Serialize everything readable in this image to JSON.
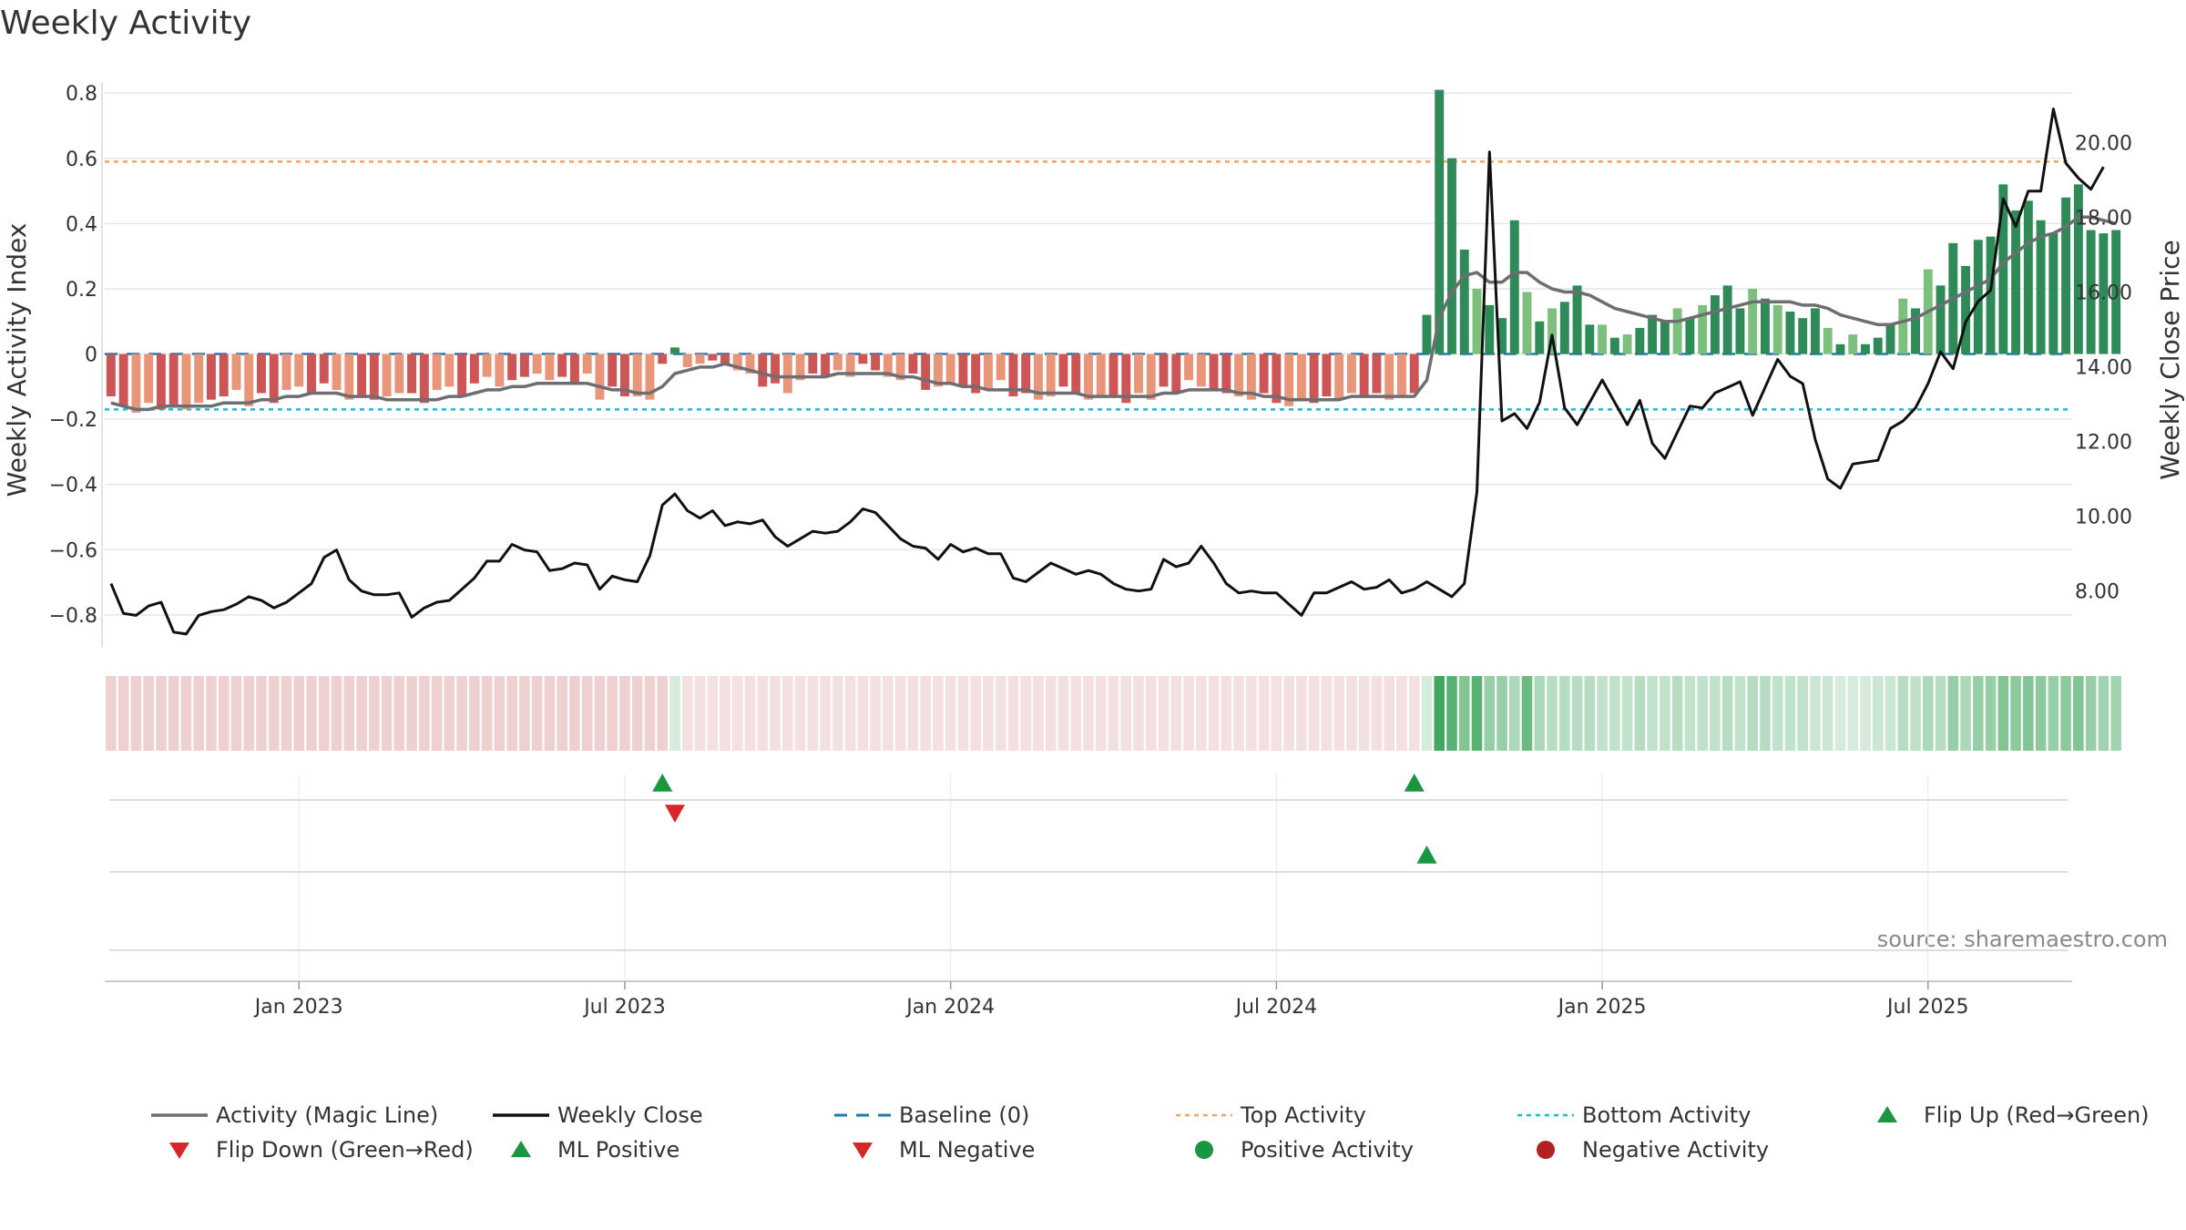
{
  "chart_data": {
    "type": "bar",
    "title": "Weekly Activity",
    "ylabel": "Weekly Activity Index",
    "y2label": "Weekly Close Price",
    "ylim": [
      -0.87,
      0.82
    ],
    "y2lim": [
      6.75,
      21.5
    ],
    "y_ticks": [
      {
        "v": 0.8,
        "label": "0.8"
      },
      {
        "v": 0.6,
        "label": "0.6"
      },
      {
        "v": 0.4,
        "label": "0.4"
      },
      {
        "v": 0.2,
        "label": "0.2"
      },
      {
        "v": 0,
        "label": "0"
      },
      {
        "v": -0.2,
        "label": "−0.2"
      },
      {
        "v": -0.4,
        "label": "−0.4"
      },
      {
        "v": -0.6,
        "label": "−0.6"
      },
      {
        "v": -0.8,
        "label": "−0.8"
      }
    ],
    "y2_ticks": [
      {
        "v": 20,
        "label": "20.00"
      },
      {
        "v": 18,
        "label": "18.00"
      },
      {
        "v": 16,
        "label": "16.00"
      },
      {
        "v": 14,
        "label": "14.00"
      },
      {
        "v": 12,
        "label": "12.00"
      },
      {
        "v": 10,
        "label": "10.00"
      },
      {
        "v": 8,
        "label": "8.00"
      }
    ],
    "x_ticks": [
      {
        "i": 15,
        "label": "Jan 2023"
      },
      {
        "i": 41,
        "label": "Jul 2023"
      },
      {
        "i": 67,
        "label": "Jan 2024"
      },
      {
        "i": 93,
        "label": "Jul 2024"
      },
      {
        "i": 119,
        "label": "Jan 2025"
      },
      {
        "i": 145,
        "label": "Jul 2025"
      }
    ],
    "weeks": 157,
    "top_activity": 0.59,
    "bottom_activity": -0.17,
    "series": [
      {
        "name": "Weekly Activity Index",
        "kind": "bar",
        "values": [
          -0.13,
          -0.16,
          -0.18,
          -0.15,
          -0.17,
          -0.16,
          -0.17,
          -0.15,
          -0.14,
          -0.13,
          -0.11,
          -0.16,
          -0.12,
          -0.15,
          -0.11,
          -0.1,
          -0.12,
          -0.09,
          -0.11,
          -0.14,
          -0.13,
          -0.14,
          -0.13,
          -0.12,
          -0.12,
          -0.15,
          -0.11,
          -0.1,
          -0.13,
          -0.09,
          -0.07,
          -0.1,
          -0.08,
          -0.07,
          -0.06,
          -0.08,
          -0.07,
          -0.09,
          -0.06,
          -0.14,
          -0.1,
          -0.13,
          -0.13,
          -0.14,
          -0.03,
          0.02,
          -0.04,
          -0.03,
          -0.02,
          -0.03,
          -0.05,
          -0.06,
          -0.1,
          -0.09,
          -0.12,
          -0.08,
          -0.06,
          -0.07,
          -0.05,
          -0.07,
          -0.03,
          -0.05,
          -0.07,
          -0.08,
          -0.06,
          -0.11,
          -0.1,
          -0.09,
          -0.1,
          -0.12,
          -0.11,
          -0.08,
          -0.13,
          -0.12,
          -0.14,
          -0.13,
          -0.1,
          -0.12,
          -0.14,
          -0.13,
          -0.13,
          -0.15,
          -0.12,
          -0.14,
          -0.1,
          -0.12,
          -0.08,
          -0.1,
          -0.11,
          -0.12,
          -0.13,
          -0.14,
          -0.12,
          -0.15,
          -0.16,
          -0.14,
          -0.15,
          -0.13,
          -0.14,
          -0.12,
          -0.13,
          -0.12,
          -0.14,
          -0.13,
          -0.12,
          0.12,
          0.81,
          0.6,
          0.32,
          0.2,
          0.15,
          0.11,
          0.41,
          0.19,
          0.1,
          0.14,
          0.16,
          0.21,
          0.09,
          0.09,
          0.05,
          0.06,
          0.08,
          0.12,
          0.1,
          0.14,
          0.11,
          0.15,
          0.18,
          0.21,
          0.14,
          0.2,
          0.17,
          0.15,
          0.13,
          0.11,
          0.14,
          0.08,
          0.03,
          0.06,
          0.03,
          0.05,
          0.09,
          0.17,
          0.14,
          0.26,
          0.21,
          0.34,
          0.27,
          0.35,
          0.36,
          0.52,
          0.44,
          0.47,
          0.41,
          0.37,
          0.48,
          0.52,
          0.38,
          0.37,
          0.38
        ]
      },
      {
        "name": "Activity (Magic Line)",
        "kind": "line",
        "values": [
          -0.15,
          -0.16,
          -0.17,
          -0.17,
          -0.16,
          -0.16,
          -0.16,
          -0.16,
          -0.16,
          -0.15,
          -0.15,
          -0.15,
          -0.14,
          -0.14,
          -0.13,
          -0.13,
          -0.12,
          -0.12,
          -0.12,
          -0.13,
          -0.13,
          -0.13,
          -0.14,
          -0.14,
          -0.14,
          -0.14,
          -0.14,
          -0.13,
          -0.13,
          -0.12,
          -0.11,
          -0.11,
          -0.1,
          -0.1,
          -0.09,
          -0.09,
          -0.09,
          -0.09,
          -0.09,
          -0.1,
          -0.11,
          -0.11,
          -0.12,
          -0.12,
          -0.1,
          -0.06,
          -0.05,
          -0.04,
          -0.04,
          -0.03,
          -0.04,
          -0.05,
          -0.06,
          -0.07,
          -0.07,
          -0.07,
          -0.07,
          -0.07,
          -0.06,
          -0.06,
          -0.06,
          -0.06,
          -0.06,
          -0.07,
          -0.07,
          -0.08,
          -0.09,
          -0.09,
          -0.1,
          -0.1,
          -0.11,
          -0.11,
          -0.11,
          -0.11,
          -0.12,
          -0.12,
          -0.12,
          -0.12,
          -0.13,
          -0.13,
          -0.13,
          -0.13,
          -0.13,
          -0.13,
          -0.12,
          -0.12,
          -0.11,
          -0.11,
          -0.11,
          -0.11,
          -0.12,
          -0.12,
          -0.13,
          -0.13,
          -0.14,
          -0.14,
          -0.14,
          -0.14,
          -0.14,
          -0.13,
          -0.13,
          -0.13,
          -0.13,
          -0.13,
          -0.13,
          -0.08,
          0.11,
          0.19,
          0.24,
          0.25,
          0.22,
          0.22,
          0.25,
          0.25,
          0.22,
          0.2,
          0.19,
          0.19,
          0.18,
          0.16,
          0.14,
          0.13,
          0.12,
          0.11,
          0.1,
          0.1,
          0.11,
          0.12,
          0.13,
          0.14,
          0.15,
          0.16,
          0.16,
          0.16,
          0.16,
          0.15,
          0.15,
          0.14,
          0.12,
          0.11,
          0.1,
          0.09,
          0.09,
          0.1,
          0.11,
          0.13,
          0.15,
          0.17,
          0.19,
          0.21,
          0.23,
          0.28,
          0.31,
          0.34,
          0.36,
          0.37,
          0.39,
          0.42,
          0.42,
          0.41,
          0.4
        ]
      },
      {
        "name": "Weekly Close",
        "kind": "line",
        "axis": "right",
        "values": [
          8.2,
          7.4,
          7.35,
          7.6,
          7.7,
          6.9,
          6.85,
          7.35,
          7.45,
          7.5,
          7.65,
          7.85,
          7.75,
          7.55,
          7.7,
          7.95,
          8.2,
          8.9,
          9.1,
          8.3,
          8.0,
          7.9,
          7.9,
          7.95,
          7.3,
          7.55,
          7.7,
          7.75,
          8.05,
          8.35,
          8.8,
          8.8,
          9.25,
          9.1,
          9.05,
          8.55,
          8.6,
          8.75,
          8.7,
          8.05,
          8.4,
          8.3,
          8.25,
          8.95,
          10.3,
          10.6,
          10.15,
          9.95,
          10.15,
          9.75,
          9.85,
          9.8,
          9.9,
          9.45,
          9.2,
          9.4,
          9.6,
          9.55,
          9.6,
          9.85,
          10.2,
          10.1,
          9.75,
          9.4,
          9.2,
          9.15,
          8.85,
          9.25,
          9.05,
          9.15,
          9.0,
          9.0,
          8.35,
          8.25,
          8.5,
          8.75,
          8.6,
          8.45,
          8.55,
          8.45,
          8.2,
          8.05,
          8.0,
          8.05,
          8.85,
          8.65,
          8.75,
          9.2,
          8.75,
          8.2,
          7.95,
          8.0,
          7.95,
          7.95,
          7.65,
          7.35,
          7.95,
          7.95,
          8.1,
          8.25,
          8.05,
          8.1,
          8.3,
          7.95,
          8.05,
          8.25,
          8.05,
          7.85,
          8.2,
          10.65,
          19.75,
          12.55,
          12.75,
          12.35,
          13.05,
          14.85,
          12.9,
          12.45,
          13.05,
          13.65,
          13.05,
          12.45,
          13.1,
          11.95,
          11.55,
          12.25,
          12.95,
          12.9,
          13.3,
          13.45,
          13.6,
          12.7,
          13.45,
          14.2,
          13.75,
          13.55,
          12.05,
          11.0,
          10.75,
          11.4,
          11.45,
          11.5,
          12.35,
          12.55,
          12.9,
          13.55,
          14.4,
          13.95,
          15.2,
          15.75,
          16.05,
          18.5,
          17.75,
          18.7,
          18.7,
          20.9,
          19.45,
          19.05,
          18.75,
          19.35
        ]
      }
    ],
    "flip_up": [
      44,
      104
    ],
    "flip_down": [
      45
    ],
    "ml_positive": [
      105
    ],
    "ml_negative": [],
    "strip": [
      0.3,
      0.3,
      0.3,
      0.3,
      0.3,
      0.3,
      0.3,
      0.3,
      0.3,
      0.3,
      0.3,
      0.3,
      0.3,
      0.3,
      0.3,
      0.3,
      0.3,
      0.3,
      0.3,
      0.3,
      0.3,
      0.3,
      0.3,
      0.3,
      0.3,
      0.3,
      0.3,
      0.3,
      0.3,
      0.3,
      0.3,
      0.3,
      0.3,
      0.3,
      0.3,
      0.3,
      0.3,
      0.3,
      0.3,
      0.3,
      0.3,
      0.3,
      0.3,
      0.3,
      0.3,
      0.2,
      0.2,
      0.2,
      0.2,
      0.2,
      0.2,
      0.2,
      0.2,
      0.2,
      0.2,
      0.2,
      0.2,
      0.2,
      0.2,
      0.2,
      0.2,
      0.2,
      0.2,
      0.2,
      0.2,
      0.2,
      0.2,
      0.2,
      0.2,
      0.2,
      0.2,
      0.2,
      0.2,
      0.2,
      0.2,
      0.2,
      0.2,
      0.2,
      0.2,
      0.2,
      0.2,
      0.2,
      0.2,
      0.2,
      0.2,
      0.2,
      0.2,
      0.2,
      0.2,
      0.2,
      0.2,
      0.2,
      0.2,
      0.2,
      0.2,
      0.2,
      0.2,
      0.2,
      0.2,
      0.2,
      0.2,
      0.2,
      0.2,
      0.2,
      0.2,
      0.2,
      0.9,
      0.8,
      0.6,
      0.8,
      0.5,
      0.5,
      0.4,
      0.7,
      0.4,
      0.35,
      0.35,
      0.35,
      0.35,
      0.3,
      0.3,
      0.3,
      0.35,
      0.3,
      0.3,
      0.35,
      0.3,
      0.3,
      0.3,
      0.35,
      0.3,
      0.35,
      0.35,
      0.3,
      0.3,
      0.3,
      0.25,
      0.25,
      0.2,
      0.2,
      0.2,
      0.25,
      0.25,
      0.35,
      0.3,
      0.4,
      0.35,
      0.5,
      0.4,
      0.5,
      0.5,
      0.6,
      0.55,
      0.6,
      0.55,
      0.5,
      0.55,
      0.6,
      0.5,
      0.45,
      0.45
    ]
  },
  "source_text": "source: sharemaestro.com",
  "legend": [
    {
      "label": "Activity (Magic Line)",
      "sym": "line",
      "color": "#6e6e72"
    },
    {
      "label": "Weekly Close",
      "sym": "line",
      "color": "#111111"
    },
    {
      "label": "Baseline (0)",
      "sym": "dash",
      "color": "#1f77b4"
    },
    {
      "label": "Top Activity",
      "sym": "dot",
      "color": "#f4a261"
    },
    {
      "label": "Bottom Activity",
      "sym": "dot",
      "color": "#17becf"
    },
    {
      "label": "Flip Up (Red→Green)",
      "sym": "tri-up",
      "color": "#1a9641"
    },
    {
      "label": "Flip Down (Green→Red)",
      "sym": "tri-down",
      "color": "#d62728"
    },
    {
      "label": "ML Positive",
      "sym": "tri-up",
      "color": "#1a9641"
    },
    {
      "label": "ML Negative",
      "sym": "tri-down",
      "color": "#d62728"
    },
    {
      "label": "Positive Activity",
      "sym": "circle",
      "color": "#1a9641"
    },
    {
      "label": "Negative Activity",
      "sym": "circle",
      "color": "#b22222"
    }
  ],
  "colors": {
    "pos_strong": "#2e8b57",
    "pos_light": "#7dbf7d",
    "neg_strong": "#cd5555",
    "neg_light": "#e8957a",
    "strip_pos": "#2e9e4f",
    "strip_neg": "#c86464",
    "magic_line": "#6e6e72",
    "close_line": "#111111",
    "baseline": "#1f77b4",
    "top": "#f4a261",
    "bottom": "#17becf",
    "grid": "#e6e6e6"
  }
}
